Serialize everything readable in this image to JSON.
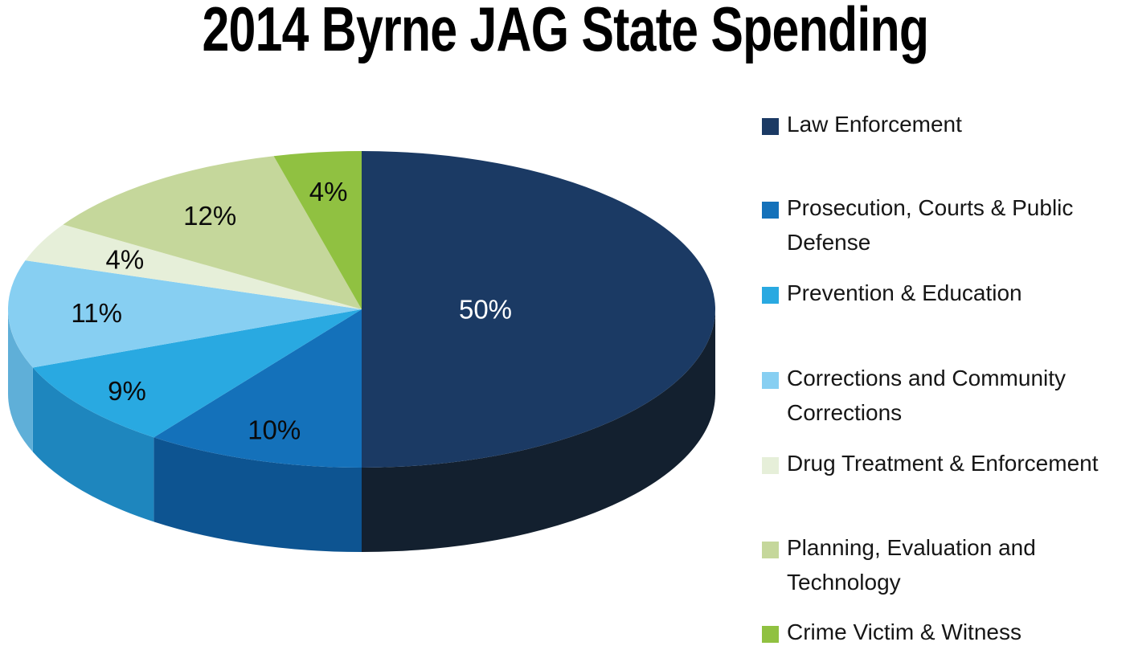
{
  "chart_data": {
    "type": "pie",
    "title": "2014 Byrne JAG State Spending",
    "three_d": true,
    "start_angle_deg": 0,
    "direction": "clockwise",
    "legend_position": "right",
    "value_unit": "percent",
    "background_color": "#FFFFFF",
    "slices": [
      {
        "label": "Law Enforcement",
        "value": 50,
        "pct_label": "50%",
        "color": "#1B3A64",
        "side_color": "#13202F",
        "label_color": "#FFFFFF",
        "label_r": 0.35
      },
      {
        "label": "Prosecution, Courts & Public Defense",
        "value": 10,
        "pct_label": "10%",
        "color": "#1471BA",
        "side_color": "#0D5491",
        "label_color": "#0A0A0A",
        "label_r": 0.8
      },
      {
        "label": "Prevention & Education",
        "value": 9,
        "pct_label": "9%",
        "color": "#29A9E1",
        "side_color": "#1E86BE",
        "label_color": "#0A0A0A",
        "label_r": 0.84
      },
      {
        "label": "Corrections and Community Corrections",
        "value": 11,
        "pct_label": "11%",
        "color": "#87CFF2",
        "side_color": "#5FAFD8",
        "label_color": "#0A0A0A",
        "label_r": 0.75
      },
      {
        "label": "Drug Treatment & Enforcement",
        "value": 4,
        "pct_label": "4%",
        "color": "#E6EFD9",
        "side_color": "#C2D4B8",
        "label_color": "#0A0A0A",
        "label_r": 0.74
      },
      {
        "label": "Planning, Evaluation and Technology",
        "value": 12,
        "pct_label": "12%",
        "color": "#C5D79B",
        "side_color": "#A3B97E",
        "label_color": "#0A0A0A",
        "label_r": 0.73
      },
      {
        "label": "Crime Victim & Witness",
        "value": 4,
        "pct_label": "4%",
        "color": "#90C141",
        "side_color": "#6F9A2F",
        "label_color": "#0A0A0A",
        "label_r": 0.75
      }
    ]
  }
}
